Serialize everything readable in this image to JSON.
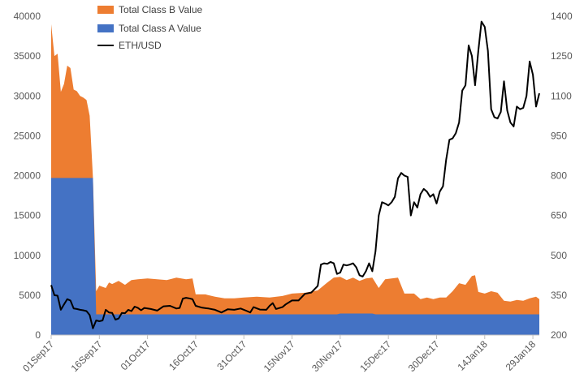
{
  "chart_data": {
    "type": "area",
    "title": "",
    "colors": {
      "class_b": "#ED7D31",
      "class_a": "#4472C4",
      "eth": "#000000",
      "axis": "#BFBFBF",
      "text": "#595959"
    },
    "left_axis": {
      "min": 0,
      "max": 40000,
      "ticks": [
        "0",
        "5000",
        "10000",
        "15000",
        "20000",
        "25000",
        "30000",
        "35000",
        "40000"
      ]
    },
    "right_axis": {
      "min": 200,
      "max": 1400,
      "ticks": [
        "200",
        "350",
        "500",
        "650",
        "800",
        "950",
        "1100",
        "1250",
        "1400"
      ]
    },
    "x_axis": {
      "start": "2017-09-01",
      "end": "2018-01-31",
      "tick_labels": [
        "01Sep17",
        "16Sep17",
        "01Oct17",
        "16Oct17",
        "31Oct17",
        "15Nov17",
        "30Nov17",
        "15Dec17",
        "30Dec17",
        "14Jan18",
        "29Jan18"
      ],
      "tick_dates": [
        "2017-09-01",
        "2017-09-16",
        "2017-10-01",
        "2017-10-16",
        "2017-10-31",
        "2017-11-15",
        "2017-11-30",
        "2017-12-15",
        "2017-12-30",
        "2018-01-14",
        "2018-01-29"
      ]
    },
    "legend": [
      {
        "label": "Total Class B Value",
        "key": "class_b"
      },
      {
        "label": "Total Class A Value",
        "key": "class_a"
      },
      {
        "label": "ETH/USD",
        "key": "eth"
      }
    ],
    "series": [
      {
        "name": "Total Class A Value",
        "axis": "left",
        "kind": "stacked-area",
        "points": [
          [
            "2017-09-01",
            19700
          ],
          [
            "2017-09-14",
            19700
          ],
          [
            "2017-09-15",
            2600
          ],
          [
            "2017-11-29",
            2600
          ],
          [
            "2017-11-30",
            2700
          ],
          [
            "2017-12-10",
            2700
          ],
          [
            "2017-12-11",
            2600
          ],
          [
            "2018-01-31",
            2600
          ]
        ]
      },
      {
        "name": "Total Class B Value",
        "axis": "left",
        "kind": "stacked-area-total",
        "points": [
          [
            "2017-09-01",
            39000
          ],
          [
            "2017-09-02",
            35000
          ],
          [
            "2017-09-03",
            35300
          ],
          [
            "2017-09-04",
            30500
          ],
          [
            "2017-09-05",
            31500
          ],
          [
            "2017-09-06",
            33800
          ],
          [
            "2017-09-07",
            33500
          ],
          [
            "2017-09-08",
            30800
          ],
          [
            "2017-09-09",
            30600
          ],
          [
            "2017-09-10",
            30000
          ],
          [
            "2017-09-11",
            29800
          ],
          [
            "2017-09-12",
            29500
          ],
          [
            "2017-09-13",
            27500
          ],
          [
            "2017-09-14",
            19800
          ],
          [
            "2017-09-15",
            5500
          ],
          [
            "2017-09-16",
            6200
          ],
          [
            "2017-09-18",
            5900
          ],
          [
            "2017-09-19",
            6600
          ],
          [
            "2017-09-20",
            6400
          ],
          [
            "2017-09-22",
            6800
          ],
          [
            "2017-09-24",
            6300
          ],
          [
            "2017-09-26",
            6900
          ],
          [
            "2017-09-28",
            7000
          ],
          [
            "2017-10-01",
            7100
          ],
          [
            "2017-10-04",
            7000
          ],
          [
            "2017-10-07",
            6900
          ],
          [
            "2017-10-10",
            7200
          ],
          [
            "2017-10-13",
            7000
          ],
          [
            "2017-10-15",
            7100
          ],
          [
            "2017-10-16",
            5100
          ],
          [
            "2017-10-19",
            5100
          ],
          [
            "2017-10-22",
            4800
          ],
          [
            "2017-10-25",
            4600
          ],
          [
            "2017-10-28",
            4600
          ],
          [
            "2017-10-31",
            4700
          ],
          [
            "2017-11-04",
            4800
          ],
          [
            "2017-11-08",
            4700
          ],
          [
            "2017-11-12",
            4900
          ],
          [
            "2017-11-15",
            5200
          ],
          [
            "2017-11-19",
            5300
          ],
          [
            "2017-11-23",
            5600
          ],
          [
            "2017-11-26",
            6600
          ],
          [
            "2017-11-28",
            7200
          ],
          [
            "2017-11-30",
            7300
          ],
          [
            "2017-12-02",
            6900
          ],
          [
            "2017-12-04",
            7200
          ],
          [
            "2017-12-06",
            6800
          ],
          [
            "2017-12-08",
            7100
          ],
          [
            "2017-12-10",
            7200
          ],
          [
            "2017-12-12",
            5900
          ],
          [
            "2017-12-14",
            7000
          ],
          [
            "2017-12-16",
            7100
          ],
          [
            "2017-12-18",
            7200
          ],
          [
            "2017-12-20",
            5200
          ],
          [
            "2017-12-23",
            5200
          ],
          [
            "2017-12-25",
            4500
          ],
          [
            "2017-12-27",
            4700
          ],
          [
            "2017-12-29",
            4500
          ],
          [
            "2017-12-31",
            4700
          ],
          [
            "2018-01-02",
            4700
          ],
          [
            "2018-01-04",
            5500
          ],
          [
            "2018-01-06",
            6500
          ],
          [
            "2018-01-08",
            6300
          ],
          [
            "2018-01-10",
            7400
          ],
          [
            "2018-01-11",
            7500
          ],
          [
            "2018-01-12",
            5400
          ],
          [
            "2018-01-14",
            5200
          ],
          [
            "2018-01-16",
            5500
          ],
          [
            "2018-01-18",
            5300
          ],
          [
            "2018-01-20",
            4300
          ],
          [
            "2018-01-22",
            4200
          ],
          [
            "2018-01-24",
            4400
          ],
          [
            "2018-01-26",
            4300
          ],
          [
            "2018-01-28",
            4600
          ],
          [
            "2018-01-30",
            4800
          ],
          [
            "2018-01-31",
            4500
          ]
        ]
      },
      {
        "name": "ETH/USD",
        "axis": "right",
        "kind": "line",
        "points": [
          [
            "2017-09-01",
            388
          ],
          [
            "2017-09-02",
            350
          ],
          [
            "2017-09-03",
            348
          ],
          [
            "2017-09-04",
            295
          ],
          [
            "2017-09-05",
            315
          ],
          [
            "2017-09-06",
            335
          ],
          [
            "2017-09-07",
            330
          ],
          [
            "2017-09-08",
            300
          ],
          [
            "2017-09-09",
            298
          ],
          [
            "2017-09-10",
            295
          ],
          [
            "2017-09-11",
            293
          ],
          [
            "2017-09-12",
            290
          ],
          [
            "2017-09-13",
            275
          ],
          [
            "2017-09-14",
            225
          ],
          [
            "2017-09-15",
            255
          ],
          [
            "2017-09-16",
            252
          ],
          [
            "2017-09-17",
            255
          ],
          [
            "2017-09-18",
            295
          ],
          [
            "2017-09-19",
            285
          ],
          [
            "2017-09-20",
            283
          ],
          [
            "2017-09-21",
            258
          ],
          [
            "2017-09-22",
            262
          ],
          [
            "2017-09-23",
            283
          ],
          [
            "2017-09-24",
            282
          ],
          [
            "2017-09-25",
            295
          ],
          [
            "2017-09-26",
            290
          ],
          [
            "2017-09-27",
            307
          ],
          [
            "2017-09-28",
            302
          ],
          [
            "2017-09-29",
            293
          ],
          [
            "2017-09-30",
            302
          ],
          [
            "2017-10-02",
            298
          ],
          [
            "2017-10-04",
            292
          ],
          [
            "2017-10-06",
            308
          ],
          [
            "2017-10-08",
            310
          ],
          [
            "2017-10-10",
            300
          ],
          [
            "2017-10-11",
            302
          ],
          [
            "2017-10-12",
            337
          ],
          [
            "2017-10-13",
            340
          ],
          [
            "2017-10-14",
            338
          ],
          [
            "2017-10-15",
            335
          ],
          [
            "2017-10-16",
            310
          ],
          [
            "2017-10-18",
            303
          ],
          [
            "2017-10-20",
            300
          ],
          [
            "2017-10-22",
            295
          ],
          [
            "2017-10-24",
            285
          ],
          [
            "2017-10-26",
            297
          ],
          [
            "2017-10-28",
            295
          ],
          [
            "2017-10-30",
            300
          ],
          [
            "2017-11-01",
            290
          ],
          [
            "2017-11-02",
            285
          ],
          [
            "2017-11-03",
            305
          ],
          [
            "2017-11-05",
            296
          ],
          [
            "2017-11-07",
            295
          ],
          [
            "2017-11-08",
            310
          ],
          [
            "2017-11-09",
            320
          ],
          [
            "2017-11-10",
            298
          ],
          [
            "2017-11-12",
            305
          ],
          [
            "2017-11-13",
            315
          ],
          [
            "2017-11-15",
            330
          ],
          [
            "2017-11-17",
            330
          ],
          [
            "2017-11-19",
            355
          ],
          [
            "2017-11-21",
            360
          ],
          [
            "2017-11-23",
            385
          ],
          [
            "2017-11-24",
            465
          ],
          [
            "2017-11-25",
            470
          ],
          [
            "2017-11-26",
            468
          ],
          [
            "2017-11-27",
            475
          ],
          [
            "2017-11-28",
            470
          ],
          [
            "2017-11-29",
            430
          ],
          [
            "2017-11-30",
            435
          ],
          [
            "2017-12-01",
            465
          ],
          [
            "2017-12-02",
            462
          ],
          [
            "2017-12-03",
            465
          ],
          [
            "2017-12-04",
            470
          ],
          [
            "2017-12-05",
            455
          ],
          [
            "2017-12-06",
            425
          ],
          [
            "2017-12-07",
            420
          ],
          [
            "2017-12-08",
            440
          ],
          [
            "2017-12-09",
            470
          ],
          [
            "2017-12-10",
            440
          ],
          [
            "2017-12-11",
            515
          ],
          [
            "2017-12-12",
            650
          ],
          [
            "2017-12-13",
            700
          ],
          [
            "2017-12-14",
            695
          ],
          [
            "2017-12-15",
            688
          ],
          [
            "2017-12-16",
            700
          ],
          [
            "2017-12-17",
            720
          ],
          [
            "2017-12-18",
            790
          ],
          [
            "2017-12-19",
            810
          ],
          [
            "2017-12-20",
            800
          ],
          [
            "2017-12-21",
            795
          ],
          [
            "2017-12-22",
            650
          ],
          [
            "2017-12-23",
            700
          ],
          [
            "2017-12-24",
            680
          ],
          [
            "2017-12-25",
            730
          ],
          [
            "2017-12-26",
            750
          ],
          [
            "2017-12-27",
            740
          ],
          [
            "2017-12-28",
            720
          ],
          [
            "2017-12-29",
            730
          ],
          [
            "2017-12-30",
            695
          ],
          [
            "2017-12-31",
            740
          ],
          [
            "2018-01-01",
            760
          ],
          [
            "2018-01-02",
            860
          ],
          [
            "2018-01-03",
            935
          ],
          [
            "2018-01-04",
            940
          ],
          [
            "2018-01-05",
            960
          ],
          [
            "2018-01-06",
            1000
          ],
          [
            "2018-01-07",
            1120
          ],
          [
            "2018-01-08",
            1140
          ],
          [
            "2018-01-09",
            1290
          ],
          [
            "2018-01-10",
            1250
          ],
          [
            "2018-01-11",
            1140
          ],
          [
            "2018-01-12",
            1270
          ],
          [
            "2018-01-13",
            1380
          ],
          [
            "2018-01-14",
            1360
          ],
          [
            "2018-01-15",
            1270
          ],
          [
            "2018-01-16",
            1050
          ],
          [
            "2018-01-17",
            1020
          ],
          [
            "2018-01-18",
            1015
          ],
          [
            "2018-01-19",
            1040
          ],
          [
            "2018-01-20",
            1155
          ],
          [
            "2018-01-21",
            1045
          ],
          [
            "2018-01-22",
            1000
          ],
          [
            "2018-01-23",
            985
          ],
          [
            "2018-01-24",
            1060
          ],
          [
            "2018-01-25",
            1050
          ],
          [
            "2018-01-26",
            1055
          ],
          [
            "2018-01-27",
            1100
          ],
          [
            "2018-01-28",
            1230
          ],
          [
            "2018-01-29",
            1180
          ],
          [
            "2018-01-30",
            1060
          ],
          [
            "2018-01-31",
            1110
          ]
        ]
      }
    ]
  }
}
